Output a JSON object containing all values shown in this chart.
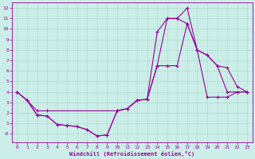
{
  "title": "",
  "xlabel": "Windchill (Refroidissement éolien,°C)",
  "ylabel": "",
  "background_color": "#cceee8",
  "grid_color": "#aaddcc",
  "line_color": "#990099",
  "xlim": [
    -0.5,
    23.5
  ],
  "ylim": [
    -0.8,
    12.5
  ],
  "xticks": [
    0,
    1,
    2,
    3,
    4,
    5,
    6,
    7,
    8,
    9,
    10,
    11,
    12,
    13,
    14,
    15,
    16,
    17,
    18,
    19,
    20,
    21,
    22,
    23
  ],
  "yticks": [
    0,
    1,
    2,
    3,
    4,
    5,
    6,
    7,
    8,
    9,
    10,
    11,
    12
  ],
  "ytick_labels": [
    "-0",
    "1",
    "2",
    "3",
    "4",
    "5",
    "6",
    "7",
    "8",
    "9",
    "10",
    "11",
    "12"
  ],
  "line1_x": [
    0,
    1,
    2,
    3,
    4,
    5,
    6,
    7,
    8,
    9,
    10,
    11,
    12,
    13,
    14,
    15,
    16,
    17,
    18,
    19,
    20,
    21,
    22,
    23
  ],
  "line1_y": [
    4.0,
    3.2,
    1.8,
    1.7,
    0.9,
    0.8,
    0.7,
    0.4,
    -0.2,
    -0.1,
    2.2,
    2.4,
    3.2,
    3.3,
    6.5,
    11.0,
    11.0,
    10.5,
    8.0,
    7.5,
    6.5,
    4.0,
    4.0,
    4.0
  ],
  "line2_x": [
    0,
    1,
    2,
    3,
    4,
    5,
    6,
    7,
    8,
    9,
    10,
    11,
    12,
    13,
    14,
    15,
    16,
    17,
    18,
    19,
    20,
    21,
    22,
    23
  ],
  "line2_y": [
    4.0,
    3.2,
    1.8,
    1.7,
    0.9,
    0.8,
    0.7,
    0.4,
    -0.2,
    -0.1,
    2.2,
    2.4,
    3.2,
    3.3,
    9.7,
    11.0,
    11.0,
    12.0,
    8.0,
    7.5,
    6.5,
    6.3,
    4.5,
    4.0
  ],
  "line3_x": [
    0,
    1,
    2,
    3,
    10,
    11,
    12,
    13,
    14,
    15,
    16,
    17,
    18,
    19,
    20,
    21,
    22,
    23
  ],
  "line3_y": [
    4.0,
    3.2,
    2.2,
    2.2,
    2.2,
    2.4,
    3.2,
    3.3,
    6.5,
    6.5,
    6.5,
    10.5,
    8.0,
    3.5,
    3.5,
    3.5,
    4.0,
    4.0
  ]
}
